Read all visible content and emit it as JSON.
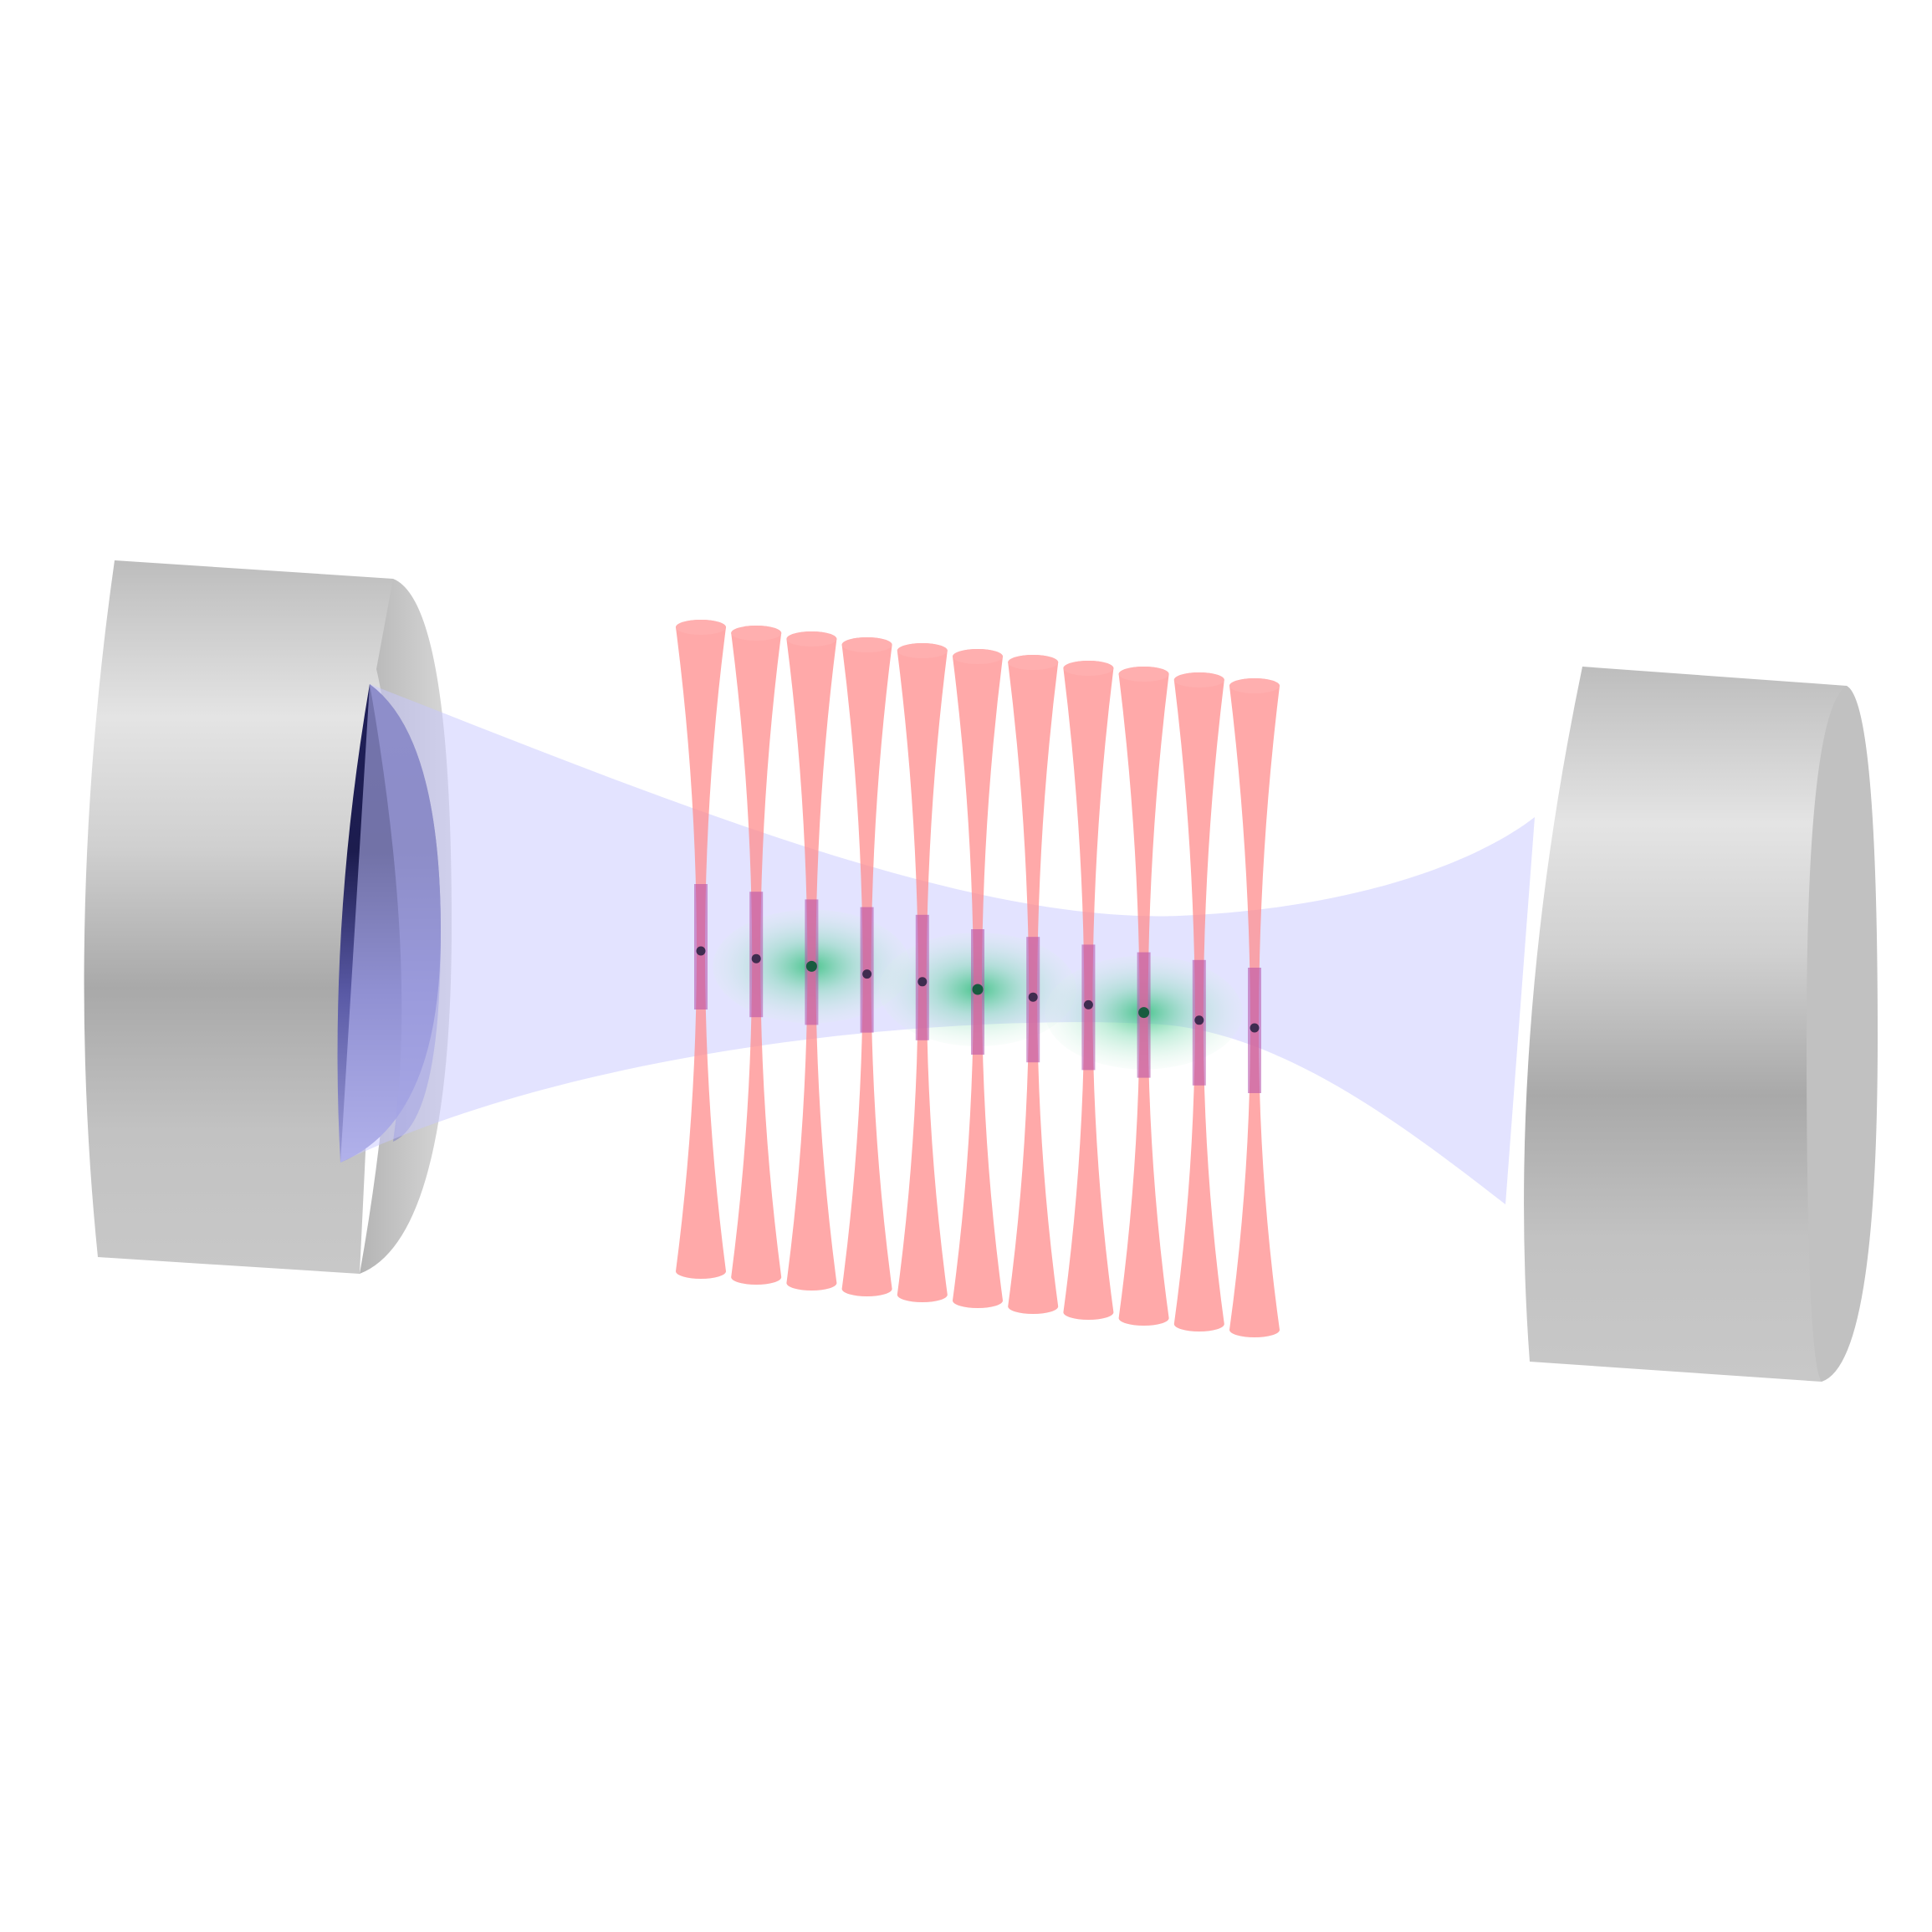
{
  "diagram": {
    "tweezer_count": 11,
    "atom_count": 11,
    "highlighted_atoms": [
      2,
      5,
      8
    ],
    "colors": {
      "background": "#ffffff",
      "mirror_light": "#e6e6e6",
      "mirror_mid": "#b9b9b9",
      "mirror_dark": "#9c9c9c",
      "mirror_face_dark": "#1c1c50",
      "mirror_face_light": "#9b9bd6",
      "cavity_mode": "#c8c8ff",
      "tweezer_beam": "#ff8c8c",
      "beam_overlap": "#b44ca8",
      "atom": "#1a1a3a",
      "atom_highlight": "#0f5a3a",
      "glow": "#2fbf7a"
    },
    "components": [
      "left-mirror",
      "right-mirror",
      "cavity-mode",
      "tweezer-array",
      "atom-array",
      "excitation-glow"
    ]
  }
}
